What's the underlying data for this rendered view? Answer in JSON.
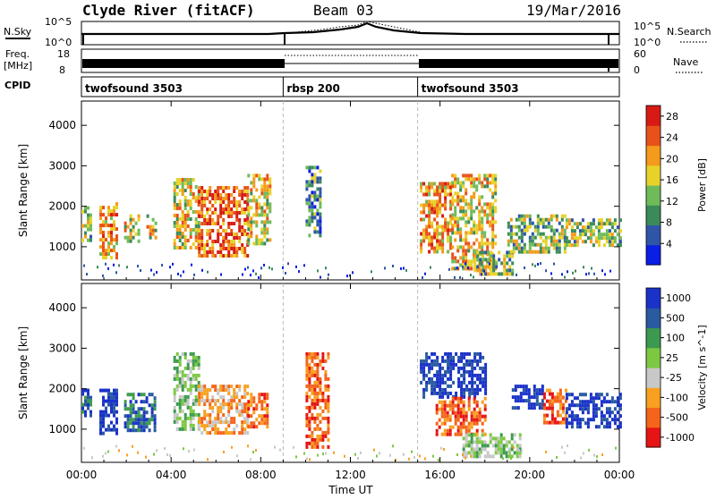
{
  "header": {
    "station": "Clyde River (fitACF)",
    "beam": "Beam 03",
    "date": "19/Mar/2016"
  },
  "top_panels": {
    "nsky_label": "N.Sky",
    "nsearch_label": "N.Search",
    "n_tick_high": "10^5",
    "n_tick_low": "10^0",
    "freq_label_1": "Freq.",
    "freq_label_2": "[MHz]",
    "freq_tick_high": "18",
    "freq_tick_low": "8",
    "nave_label": "Nave",
    "nave_tick_high": "60",
    "nave_tick_low": "0",
    "cpid_label": "CPID"
  },
  "cpid_segments": [
    {
      "label": "twofsound 3503",
      "start_h": 0,
      "end_h": 9
    },
    {
      "label": "rbsp 200",
      "start_h": 9,
      "end_h": 15
    },
    {
      "label": "twofsound 3503",
      "start_h": 15,
      "end_h": 24
    }
  ],
  "colors": {
    "power": [
      "#0a1ee6",
      "#2f55a8",
      "#3b8a5a",
      "#6fbb5a",
      "#e8d22a",
      "#f49a1c",
      "#e8521a",
      "#d81a14"
    ],
    "velocity": [
      "#e61414",
      "#f4641a",
      "#f8a020",
      "#c8c8c8",
      "#7cc842",
      "#3c9a50",
      "#2a5aa0",
      "#1a32c8"
    ]
  },
  "chart_data": [
    {
      "type": "heatmap",
      "panel": "power",
      "xlabel": "Time UT",
      "ylabel": "Slant Range [km]",
      "xlim": [
        0,
        24
      ],
      "ylim": [
        180,
        4600
      ],
      "x_ticks": [
        "00:00",
        "04:00",
        "08:00",
        "12:00",
        "16:00",
        "20:00",
        "00:00"
      ],
      "y_ticks": [
        1000,
        2000,
        3000,
        4000
      ],
      "colorbar_label": "Power [dB]",
      "colorbar_ticks": [
        4,
        8,
        12,
        16,
        20,
        24,
        28
      ],
      "clim": [
        0,
        30
      ],
      "clusters": [
        {
          "t0": 0.0,
          "t1": 0.4,
          "r0": 1200,
          "r1": 2000,
          "level": 12
        },
        {
          "t0": 0.8,
          "t1": 1.6,
          "r0": 700,
          "r1": 2100,
          "level": 22
        },
        {
          "t0": 1.9,
          "t1": 2.5,
          "r0": 1100,
          "r1": 1800,
          "level": 18
        },
        {
          "t0": 2.9,
          "t1": 3.3,
          "r0": 1200,
          "r1": 1800,
          "level": 18
        },
        {
          "t0": 4.1,
          "t1": 5.2,
          "r0": 1000,
          "r1": 2700,
          "level": 18
        },
        {
          "t0": 5.2,
          "t1": 7.4,
          "r0": 800,
          "r1": 2500,
          "level": 25
        },
        {
          "t0": 7.4,
          "t1": 8.4,
          "r0": 1100,
          "r1": 2800,
          "level": 16
        },
        {
          "t0": 10.0,
          "t1": 10.6,
          "r0": 1300,
          "r1": 3000,
          "level": 8
        },
        {
          "t0": 15.1,
          "t1": 16.5,
          "r0": 900,
          "r1": 2600,
          "level": 20
        },
        {
          "t0": 16.5,
          "t1": 18.5,
          "r0": 500,
          "r1": 2800,
          "level": 18
        },
        {
          "t0": 17.5,
          "t1": 19.2,
          "r0": 300,
          "r1": 900,
          "level": 14
        },
        {
          "t0": 19.0,
          "t1": 21.6,
          "r0": 900,
          "r1": 1800,
          "level": 14
        },
        {
          "t0": 21.6,
          "t1": 24.0,
          "r0": 1000,
          "r1": 1700,
          "level": 12
        }
      ]
    },
    {
      "type": "heatmap",
      "panel": "velocity",
      "xlabel": "Time UT",
      "ylabel": "Slant Range [km]",
      "xlim": [
        0,
        24
      ],
      "ylim": [
        180,
        4600
      ],
      "x_ticks": [
        "00:00",
        "04:00",
        "08:00",
        "12:00",
        "16:00",
        "20:00",
        "00:00"
      ],
      "y_ticks": [
        1000,
        2000,
        3000,
        4000
      ],
      "colorbar_label": "Velocity [m s^-1]",
      "colorbar_ticks": [
        "1000",
        "500",
        "100",
        "25",
        "-25",
        "-100",
        "-500",
        "-1000"
      ],
      "clusters": [
        {
          "t0": 0.0,
          "t1": 0.4,
          "r0": 1300,
          "r1": 2000,
          "level": 6
        },
        {
          "t0": 0.8,
          "t1": 1.6,
          "r0": 900,
          "r1": 2000,
          "level": 7
        },
        {
          "t0": 1.9,
          "t1": 3.3,
          "r0": 1000,
          "r1": 1900,
          "level": 6
        },
        {
          "t0": 4.1,
          "t1": 5.2,
          "r0": 1000,
          "r1": 2900,
          "level": 4
        },
        {
          "t0": 5.2,
          "t1": 7.4,
          "r0": 900,
          "r1": 2100,
          "level": 2
        },
        {
          "t0": 7.4,
          "t1": 8.3,
          "r0": 1100,
          "r1": 1900,
          "level": 1
        },
        {
          "t0": 10.0,
          "t1": 11.0,
          "r0": 600,
          "r1": 2900,
          "level": 1
        },
        {
          "t0": 15.1,
          "t1": 18.0,
          "r0": 1800,
          "r1": 2900,
          "level": 7
        },
        {
          "t0": 15.8,
          "t1": 18.0,
          "r0": 900,
          "r1": 1800,
          "level": 1
        },
        {
          "t0": 17.0,
          "t1": 19.6,
          "r0": 300,
          "r1": 900,
          "level": 4
        },
        {
          "t0": 19.2,
          "t1": 20.6,
          "r0": 1500,
          "r1": 2100,
          "level": 7
        },
        {
          "t0": 20.6,
          "t1": 21.6,
          "r0": 1200,
          "r1": 2000,
          "level": 1
        },
        {
          "t0": 21.6,
          "t1": 24.0,
          "r0": 1100,
          "r1": 1900,
          "level": 7
        }
      ]
    }
  ]
}
